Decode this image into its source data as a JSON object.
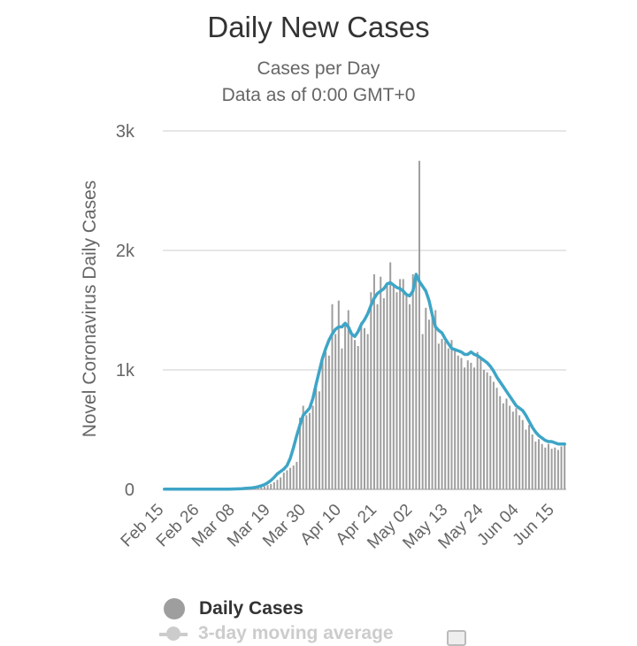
{
  "chart_data": {
    "type": "bar",
    "title": "Daily New Cases",
    "subtitle_lines": [
      "Cases per Day",
      "Data as of 0:00 GMT+0"
    ],
    "ylabel": "Novel Coronavirus Daily Cases",
    "xlabel": "",
    "ylim": [
      0,
      3000
    ],
    "yticks": [
      {
        "value": 0,
        "label": "0"
      },
      {
        "value": 1000,
        "label": "1k"
      },
      {
        "value": 2000,
        "label": "2k"
      },
      {
        "value": 3000,
        "label": "3k"
      }
    ],
    "xtick_labels": [
      {
        "index": 0,
        "label": "Feb 15"
      },
      {
        "index": 11,
        "label": "Feb 26"
      },
      {
        "index": 22,
        "label": "Mar 08"
      },
      {
        "index": 33,
        "label": "Mar 19"
      },
      {
        "index": 44,
        "label": "Mar 30"
      },
      {
        "index": 55,
        "label": "Apr 10"
      },
      {
        "index": 66,
        "label": "Apr 21"
      },
      {
        "index": 77,
        "label": "May 02"
      },
      {
        "index": 88,
        "label": "May 13"
      },
      {
        "index": 99,
        "label": "May 24"
      },
      {
        "index": 110,
        "label": "Jun 04"
      },
      {
        "index": 121,
        "label": "Jun 15"
      }
    ],
    "series": [
      {
        "name": "Daily Cases",
        "type": "bar",
        "color": "#9e9e9e",
        "values": [
          0,
          0,
          0,
          0,
          0,
          0,
          0,
          0,
          0,
          0,
          0,
          0,
          0,
          0,
          0,
          0,
          0,
          0,
          0,
          0,
          0,
          0,
          2,
          3,
          4,
          5,
          6,
          8,
          10,
          14,
          18,
          25,
          35,
          45,
          60,
          80,
          100,
          140,
          160,
          180,
          200,
          230,
          600,
          700,
          620,
          640,
          700,
          880,
          820,
          1100,
          1150,
          1120,
          1550,
          1300,
          1580,
          1180,
          1400,
          1500,
          1300,
          1250,
          1200,
          1400,
          1350,
          1300,
          1650,
          1800,
          1550,
          1780,
          1600,
          1720,
          1900,
          1700,
          1650,
          1760,
          1760,
          1620,
          1550,
          1800,
          1810,
          2750,
          1300,
          1520,
          1420,
          1480,
          1500,
          1220,
          1260,
          1240,
          1180,
          1250,
          1180,
          1120,
          1100,
          1020,
          1080,
          1060,
          1020,
          1150,
          1100,
          1000,
          980,
          950,
          900,
          850,
          780,
          720,
          760,
          700,
          650,
          680,
          620,
          580,
          500,
          540,
          460,
          400,
          420,
          380,
          350,
          380,
          340,
          350,
          330,
          360,
          380
        ],
        "legend_label": "Daily Cases"
      },
      {
        "name": "3-day moving average",
        "type": "line",
        "color": "#3ea5c7",
        "values": [
          2,
          2,
          2,
          2,
          2,
          2,
          2,
          2,
          2,
          2,
          2,
          2,
          2,
          2,
          2,
          2,
          2,
          2,
          2,
          2,
          2,
          3,
          4,
          5,
          6,
          8,
          10,
          12,
          16,
          22,
          30,
          40,
          55,
          75,
          100,
          130,
          150,
          170,
          200,
          260,
          350,
          450,
          540,
          620,
          650,
          680,
          760,
          880,
          990,
          1100,
          1180,
          1250,
          1300,
          1340,
          1360,
          1360,
          1390,
          1360,
          1300,
          1280,
          1320,
          1380,
          1420,
          1470,
          1540,
          1600,
          1640,
          1660,
          1680,
          1720,
          1730,
          1710,
          1690,
          1680,
          1660,
          1630,
          1620,
          1660,
          1800,
          1740,
          1700,
          1660,
          1580,
          1460,
          1360,
          1330,
          1310,
          1260,
          1220,
          1180,
          1170,
          1160,
          1150,
          1130,
          1130,
          1150,
          1130,
          1120,
          1100,
          1080,
          1060,
          1030,
          990,
          940,
          900,
          860,
          820,
          780,
          740,
          700,
          680,
          660,
          620,
          570,
          520,
          480,
          450,
          430,
          410,
          400,
          400,
          390,
          380,
          380,
          380
        ],
        "legend_label": "3-day moving average"
      }
    ]
  }
}
